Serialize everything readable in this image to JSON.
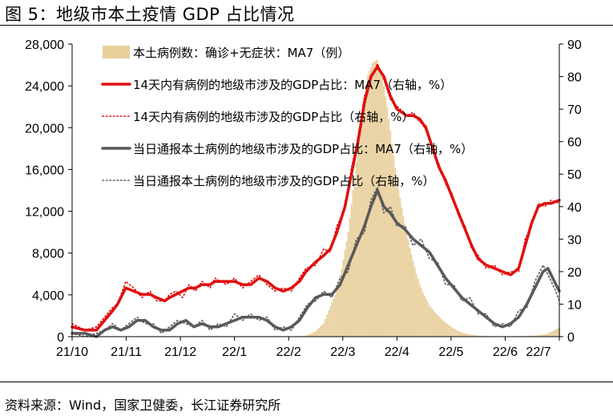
{
  "figure": {
    "title": "图 5：地级市本土疫情 GDP 占比情况",
    "source": "资料来源：Wind，国家卫健委，长江证券研究所"
  },
  "chart_data": {
    "type": "bar+line",
    "title": "地级市本土疫情 GDP 占比情况",
    "x_tick_labels": [
      "21/10",
      "21/11",
      "21/12",
      "22/1",
      "22/2",
      "22/3",
      "22/4",
      "22/5",
      "22/6",
      "22/7"
    ],
    "left_axis": {
      "ylim": [
        0,
        28000
      ],
      "ticks": [
        0,
        4000,
        8000,
        12000,
        16000,
        20000,
        24000,
        28000
      ],
      "tick_labels": [
        "0",
        "4,000",
        "8,000",
        "12,000",
        "16,000",
        "20,000",
        "24,000",
        "28,000"
      ]
    },
    "right_axis": {
      "ylim": [
        0,
        90
      ],
      "ticks": [
        0,
        10,
        20,
        30,
        40,
        50,
        60,
        70,
        80,
        90
      ],
      "tick_labels": [
        "0",
        "10",
        "20",
        "30",
        "40",
        "50",
        "60",
        "70",
        "80",
        "90"
      ]
    },
    "x_index_range": [
      0,
      300
    ],
    "colors": {
      "bar": "#e8cf9c",
      "red": "#e01010",
      "gray": "#595959"
    },
    "series": [
      {
        "name": "本土病例数：确诊+无症状：MA7（例）",
        "axis": "left",
        "style": "bar",
        "points": [
          [
            0,
            0
          ],
          [
            100,
            0
          ],
          [
            140,
            20
          ],
          [
            145,
            150
          ],
          [
            150,
            500
          ],
          [
            155,
            1300
          ],
          [
            158,
            2500
          ],
          [
            162,
            4000
          ],
          [
            166,
            6500
          ],
          [
            170,
            10000
          ],
          [
            173,
            14000
          ],
          [
            176,
            18000
          ],
          [
            179,
            22000
          ],
          [
            182,
            25000
          ],
          [
            185,
            26200
          ],
          [
            188,
            26500
          ],
          [
            191,
            25000
          ],
          [
            194,
            22000
          ],
          [
            197,
            18500
          ],
          [
            200,
            15000
          ],
          [
            204,
            11500
          ],
          [
            208,
            8500
          ],
          [
            212,
            6000
          ],
          [
            216,
            4200
          ],
          [
            220,
            3000
          ],
          [
            224,
            2200
          ],
          [
            228,
            1600
          ],
          [
            232,
            1100
          ],
          [
            236,
            700
          ],
          [
            240,
            400
          ],
          [
            245,
            200
          ],
          [
            250,
            100
          ],
          [
            260,
            30
          ],
          [
            270,
            0
          ],
          [
            285,
            100
          ],
          [
            292,
            250
          ],
          [
            298,
            700
          ],
          [
            300,
            900
          ]
        ]
      },
      {
        "name": "14天内有病例的地级市涉及的GDP占比：MA7（右轴，%）",
        "axis": "right",
        "style": "solid",
        "points": [
          [
            0,
            3
          ],
          [
            8,
            2
          ],
          [
            15,
            2
          ],
          [
            20,
            5
          ],
          [
            25,
            8
          ],
          [
            28,
            10
          ],
          [
            33,
            15
          ],
          [
            38,
            14
          ],
          [
            43,
            13
          ],
          [
            48,
            13
          ],
          [
            52,
            12
          ],
          [
            57,
            11
          ],
          [
            60,
            12
          ],
          [
            64,
            13
          ],
          [
            68,
            14
          ],
          [
            72,
            15
          ],
          [
            76,
            15
          ],
          [
            80,
            16
          ],
          [
            85,
            16
          ],
          [
            88,
            17
          ],
          [
            95,
            17
          ],
          [
            100,
            17
          ],
          [
            105,
            16
          ],
          [
            110,
            16
          ],
          [
            115,
            18
          ],
          [
            120,
            17
          ],
          [
            125,
            15
          ],
          [
            130,
            14
          ],
          [
            135,
            15
          ],
          [
            140,
            17
          ],
          [
            144,
            20
          ],
          [
            150,
            23
          ],
          [
            155,
            25
          ],
          [
            159,
            27
          ],
          [
            163,
            32
          ],
          [
            168,
            40
          ],
          [
            172,
            50
          ],
          [
            176,
            60
          ],
          [
            180,
            72
          ],
          [
            184,
            80
          ],
          [
            188,
            83
          ],
          [
            192,
            80
          ],
          [
            196,
            74
          ],
          [
            200,
            70
          ],
          [
            206,
            68
          ],
          [
            210,
            68
          ],
          [
            214,
            67
          ],
          [
            218,
            64
          ],
          [
            222,
            58
          ],
          [
            226,
            52
          ],
          [
            230,
            48
          ],
          [
            234,
            43
          ],
          [
            238,
            38
          ],
          [
            242,
            33
          ],
          [
            246,
            28
          ],
          [
            250,
            24
          ],
          [
            255,
            22
          ],
          [
            260,
            21
          ],
          [
            265,
            20
          ],
          [
            270,
            19
          ],
          [
            275,
            21
          ],
          [
            279,
            28
          ],
          [
            283,
            35
          ],
          [
            287,
            40
          ],
          [
            291,
            41
          ],
          [
            295,
            41
          ],
          [
            300,
            42
          ]
        ]
      },
      {
        "name": "14天内有病例的地级市涉及的GDP占比（右轴，%）",
        "axis": "right",
        "style": "dotted",
        "points": [
          [
            0,
            4
          ],
          [
            8,
            2
          ],
          [
            15,
            3
          ],
          [
            20,
            6
          ],
          [
            25,
            9
          ],
          [
            28,
            10
          ],
          [
            33,
            17
          ],
          [
            38,
            15
          ],
          [
            43,
            12
          ],
          [
            48,
            14
          ],
          [
            52,
            11
          ],
          [
            57,
            11
          ],
          [
            60,
            13
          ],
          [
            64,
            14
          ],
          [
            68,
            12
          ],
          [
            72,
            16
          ],
          [
            76,
            14
          ],
          [
            80,
            17
          ],
          [
            85,
            15
          ],
          [
            88,
            18
          ],
          [
            95,
            16
          ],
          [
            100,
            18
          ],
          [
            105,
            15
          ],
          [
            110,
            17
          ],
          [
            115,
            19
          ],
          [
            120,
            16
          ],
          [
            125,
            14
          ],
          [
            130,
            15
          ],
          [
            135,
            14
          ],
          [
            140,
            18
          ],
          [
            144,
            21
          ],
          [
            150,
            22
          ],
          [
            155,
            27
          ],
          [
            159,
            26
          ],
          [
            163,
            34
          ],
          [
            168,
            39
          ],
          [
            172,
            52
          ],
          [
            176,
            61
          ],
          [
            180,
            74
          ],
          [
            184,
            79
          ],
          [
            188,
            84
          ],
          [
            192,
            79
          ],
          [
            196,
            73
          ],
          [
            200,
            71
          ],
          [
            206,
            68
          ],
          [
            210,
            69
          ],
          [
            214,
            66
          ],
          [
            218,
            65
          ],
          [
            222,
            57
          ],
          [
            226,
            53
          ],
          [
            230,
            47
          ],
          [
            234,
            44
          ],
          [
            238,
            37
          ],
          [
            242,
            34
          ],
          [
            246,
            27
          ],
          [
            250,
            25
          ],
          [
            255,
            21
          ],
          [
            260,
            22
          ],
          [
            265,
            19
          ],
          [
            270,
            20
          ],
          [
            275,
            20
          ],
          [
            279,
            30
          ],
          [
            283,
            34
          ],
          [
            287,
            41
          ],
          [
            291,
            40
          ],
          [
            295,
            42
          ],
          [
            300,
            41
          ]
        ]
      },
      {
        "name": "当日通报本土病例的地级市涉及的GDP占比：MA7（右轴，%）",
        "axis": "right",
        "style": "solid",
        "points": [
          [
            0,
            1
          ],
          [
            8,
            1
          ],
          [
            15,
            0
          ],
          [
            20,
            2
          ],
          [
            25,
            3
          ],
          [
            30,
            2
          ],
          [
            35,
            3
          ],
          [
            40,
            5
          ],
          [
            45,
            5
          ],
          [
            50,
            3
          ],
          [
            55,
            2
          ],
          [
            60,
            2
          ],
          [
            65,
            4
          ],
          [
            70,
            5
          ],
          [
            75,
            3
          ],
          [
            80,
            4
          ],
          [
            85,
            3
          ],
          [
            90,
            3
          ],
          [
            95,
            4
          ],
          [
            100,
            5
          ],
          [
            105,
            6
          ],
          [
            110,
            6
          ],
          [
            115,
            6
          ],
          [
            120,
            5
          ],
          [
            125,
            3
          ],
          [
            130,
            2
          ],
          [
            135,
            3
          ],
          [
            140,
            5
          ],
          [
            145,
            9
          ],
          [
            150,
            12
          ],
          [
            155,
            13
          ],
          [
            160,
            13
          ],
          [
            165,
            16
          ],
          [
            170,
            22
          ],
          [
            175,
            28
          ],
          [
            180,
            34
          ],
          [
            184,
            40
          ],
          [
            188,
            45
          ],
          [
            192,
            40
          ],
          [
            196,
            38
          ],
          [
            200,
            35
          ],
          [
            205,
            33
          ],
          [
            210,
            30
          ],
          [
            215,
            28
          ],
          [
            220,
            26
          ],
          [
            225,
            22
          ],
          [
            230,
            18
          ],
          [
            235,
            15
          ],
          [
            240,
            12
          ],
          [
            245,
            10
          ],
          [
            250,
            8
          ],
          [
            255,
            6
          ],
          [
            260,
            4
          ],
          [
            265,
            3
          ],
          [
            270,
            4
          ],
          [
            275,
            6
          ],
          [
            280,
            10
          ],
          [
            285,
            15
          ],
          [
            290,
            20
          ],
          [
            293,
            21
          ],
          [
            297,
            17
          ],
          [
            300,
            14
          ]
        ]
      },
      {
        "name": "当日通报本土病例的地级市涉及的GDP占比（右轴，%）",
        "axis": "right",
        "style": "dotted",
        "points": [
          [
            0,
            1
          ],
          [
            8,
            0
          ],
          [
            15,
            1
          ],
          [
            20,
            2
          ],
          [
            25,
            4
          ],
          [
            30,
            2
          ],
          [
            35,
            4
          ],
          [
            40,
            6
          ],
          [
            45,
            4
          ],
          [
            50,
            4
          ],
          [
            55,
            1
          ],
          [
            60,
            3
          ],
          [
            65,
            5
          ],
          [
            70,
            4
          ],
          [
            75,
            3
          ],
          [
            80,
            5
          ],
          [
            85,
            2
          ],
          [
            90,
            4
          ],
          [
            95,
            3
          ],
          [
            100,
            7
          ],
          [
            105,
            5
          ],
          [
            110,
            7
          ],
          [
            115,
            5
          ],
          [
            120,
            6
          ],
          [
            125,
            2
          ],
          [
            130,
            3
          ],
          [
            135,
            2
          ],
          [
            140,
            6
          ],
          [
            145,
            10
          ],
          [
            150,
            11
          ],
          [
            155,
            14
          ],
          [
            160,
            12
          ],
          [
            165,
            18
          ],
          [
            170,
            20
          ],
          [
            175,
            30
          ],
          [
            180,
            32
          ],
          [
            184,
            42
          ],
          [
            188,
            46
          ],
          [
            192,
            38
          ],
          [
            196,
            40
          ],
          [
            200,
            34
          ],
          [
            205,
            34
          ],
          [
            210,
            28
          ],
          [
            215,
            30
          ],
          [
            220,
            24
          ],
          [
            225,
            23
          ],
          [
            230,
            16
          ],
          [
            235,
            16
          ],
          [
            240,
            11
          ],
          [
            245,
            12
          ],
          [
            250,
            7
          ],
          [
            255,
            7
          ],
          [
            260,
            3
          ],
          [
            265,
            4
          ],
          [
            270,
            3
          ],
          [
            275,
            8
          ],
          [
            280,
            9
          ],
          [
            285,
            17
          ],
          [
            290,
            22
          ],
          [
            293,
            19
          ],
          [
            297,
            15
          ],
          [
            300,
            11
          ]
        ]
      }
    ]
  }
}
